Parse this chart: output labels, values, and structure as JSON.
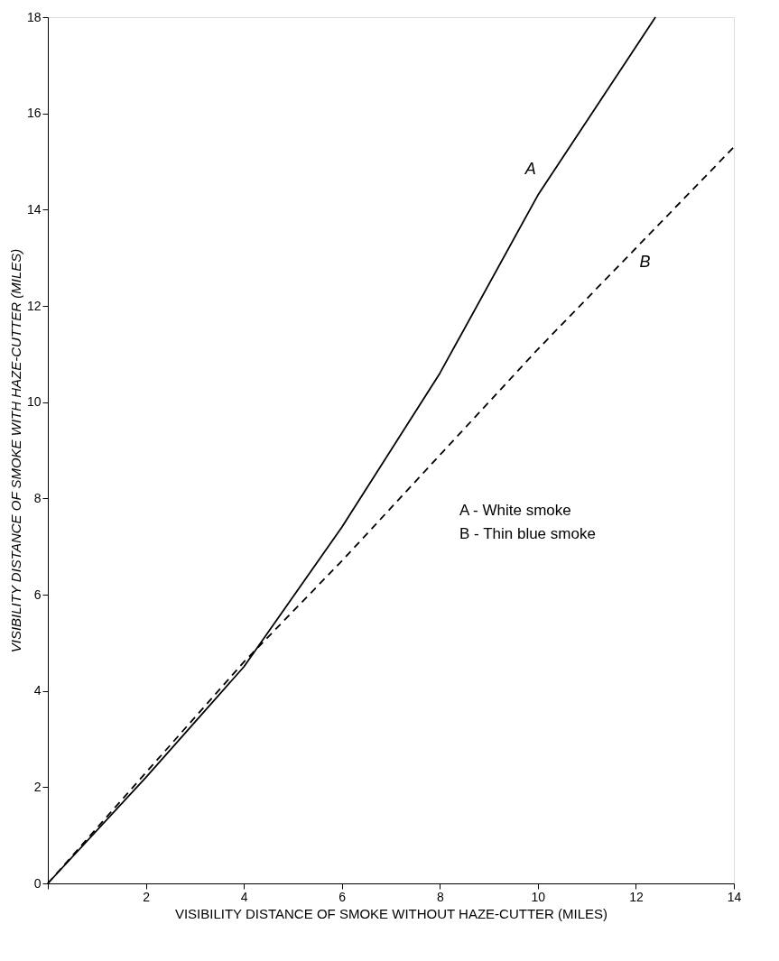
{
  "chart_data": {
    "type": "line",
    "xlabel": "VISIBILITY DISTANCE OF SMOKE WITHOUT HAZE-CUTTER (MILES)",
    "ylabel": "VISIBILITY DISTANCE OF SMOKE WITH HAZE-CUTTER (MILES)",
    "xlim": [
      0,
      14
    ],
    "ylim": [
      0,
      18
    ],
    "xticks": [
      {
        "value": 0,
        "label": null
      },
      2,
      4,
      6,
      8,
      10,
      12,
      14
    ],
    "yticks": [
      0,
      2,
      4,
      6,
      8,
      10,
      12,
      14,
      16,
      18
    ],
    "marker": "none",
    "series": [
      {
        "name": "A",
        "color": "#000000",
        "line_style": "solid",
        "x": [
          0,
          2,
          4,
          6,
          8,
          10,
          12.4
        ],
        "values": [
          0,
          2.2,
          4.5,
          7.4,
          10.6,
          14.3,
          18
        ]
      },
      {
        "name": "B",
        "color": "#000000",
        "line_style": "dashed",
        "x": [
          0,
          2,
          4,
          6,
          8,
          10,
          12,
          14
        ],
        "values": [
          0,
          2.3,
          4.6,
          6.7,
          8.9,
          11.1,
          13.2,
          15.3
        ]
      }
    ],
    "annotations": [
      "A  - White smoke",
      "B  - Thin blue smoke"
    ]
  }
}
